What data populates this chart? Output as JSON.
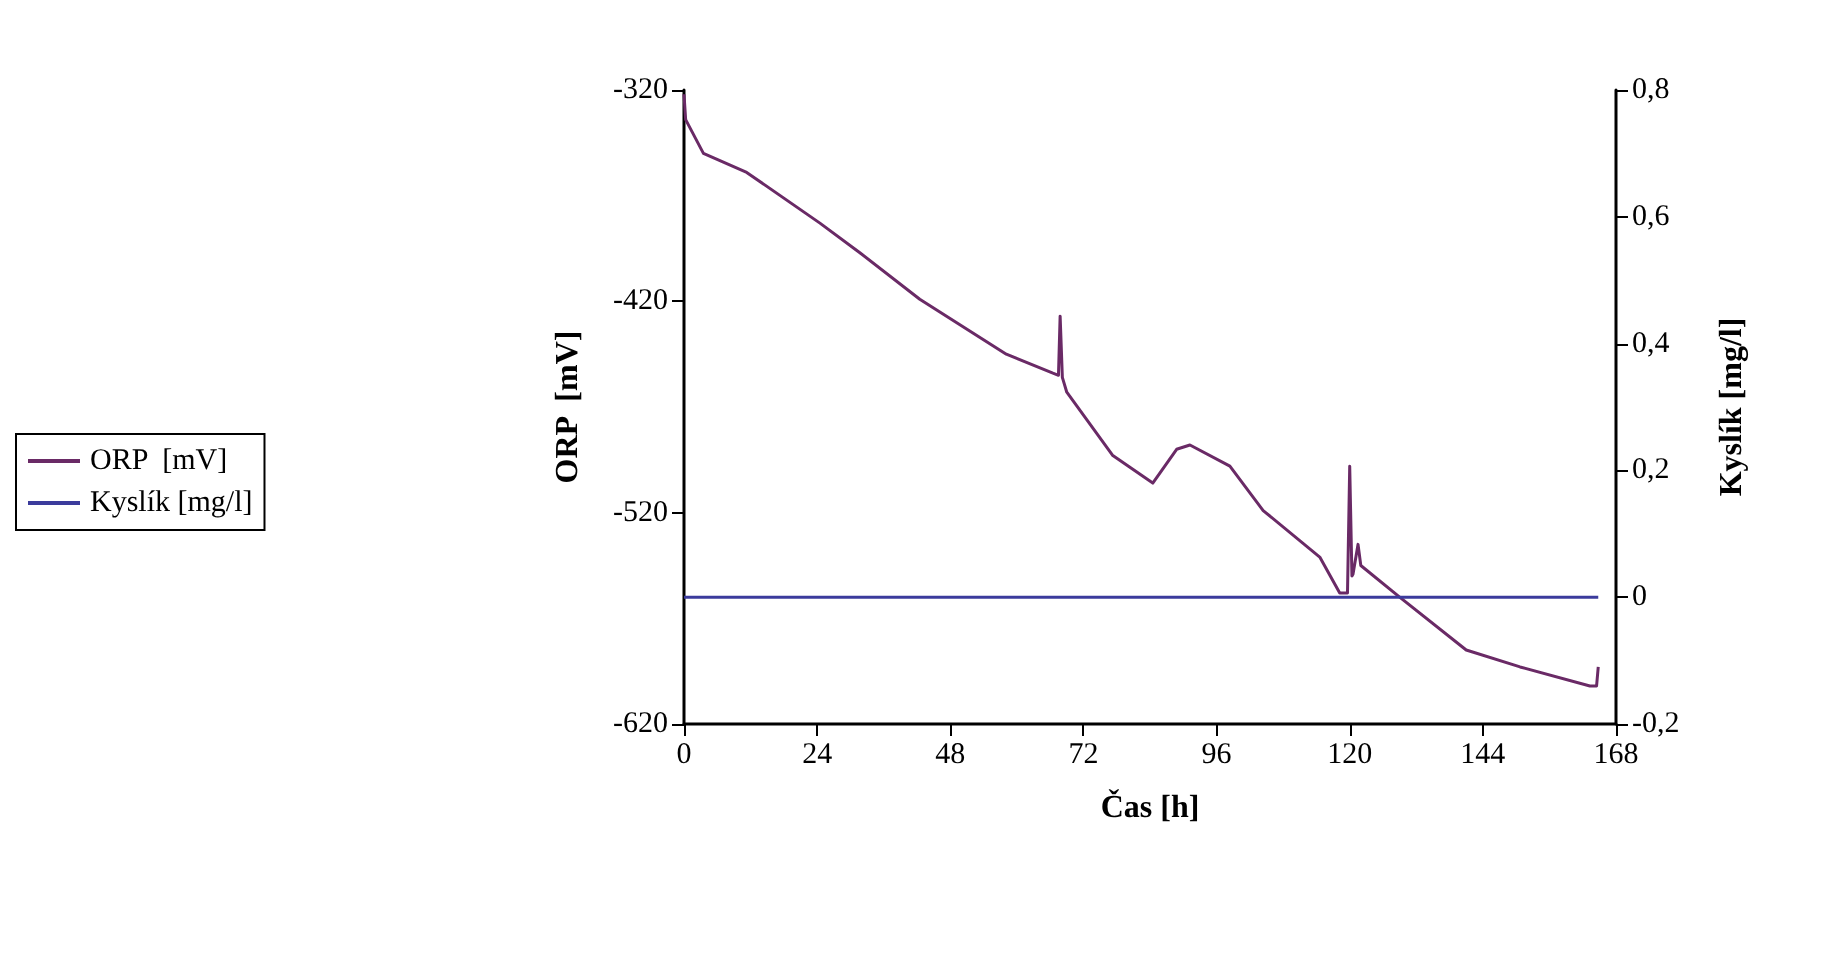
{
  "chart_data": {
    "type": "line",
    "xlabel": "Čas [h]",
    "ylabel": "ORP  [mV]",
    "y2label": "Kyslík [mg/l]",
    "xlim": [
      0,
      168
    ],
    "xticks": [
      0,
      24,
      48,
      72,
      96,
      120,
      144,
      168
    ],
    "ylim": [
      -620,
      -320
    ],
    "yticks": [
      -620,
      -520,
      -420,
      -320
    ],
    "y2lim": [
      -0.2,
      0.8
    ],
    "y2ticks": [
      {
        "value": -0.2,
        "label": "-0,2"
      },
      {
        "value": 0,
        "label": "0"
      },
      {
        "value": 0.2,
        "label": "0,2"
      },
      {
        "value": 0.4,
        "label": "0,4"
      },
      {
        "value": 0.6,
        "label": "0,6"
      },
      {
        "value": 0.8,
        "label": "0,8"
      }
    ],
    "grid": false,
    "legend": "left",
    "marker": "none",
    "line_style": "solid",
    "series": [
      {
        "name": "ORP  [mV]",
        "color": "#6a2a66",
        "x": [
          0,
          0.3,
          3.5,
          11.3,
          24.5,
          31.7,
          42.5,
          58.1,
          66.5,
          67.5,
          67.8,
          68.2,
          69,
          77.3,
          84.5,
          88.8,
          91.2,
          98.4,
          104.4,
          114.6,
          118.2,
          119.6,
          120,
          120.4,
          120.6,
          121.5,
          122,
          129,
          141,
          150.7,
          163.3,
          164.5,
          164.8
        ],
        "values": [
          -322,
          -334,
          -350,
          -359,
          -383,
          -397,
          -419,
          -445,
          -454,
          -455,
          -427,
          -456,
          -463,
          -493,
          -506,
          -490,
          -488,
          -498,
          -519,
          -541,
          -558,
          -558,
          -498,
          -550,
          -549,
          -535,
          -545,
          -560,
          -585,
          -593,
          -602,
          -602,
          -593
        ]
      },
      {
        "name": "Kyslík [mg/l]",
        "color": "#3b3b9c",
        "axis": "y2",
        "x": [
          0,
          164.8
        ],
        "values": [
          0,
          0
        ]
      }
    ]
  }
}
